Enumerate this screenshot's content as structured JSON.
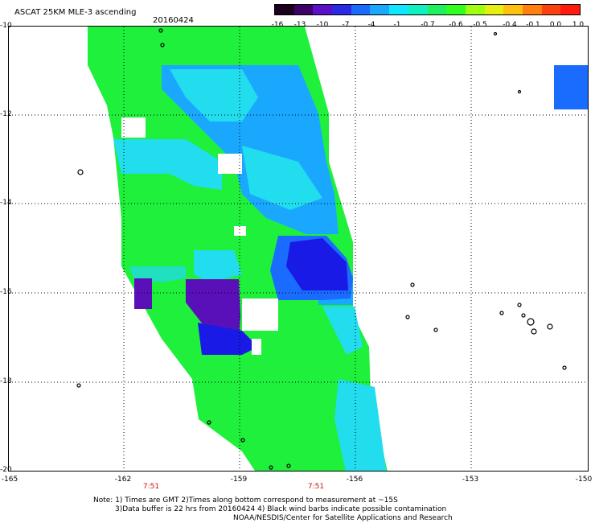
{
  "header": {
    "title": "ASCAT 25KM MLE-3 ascending",
    "date": "20160424"
  },
  "colorbar": {
    "colors": [
      "#1a001a",
      "#3d0066",
      "#5a10c8",
      "#2a2ae6",
      "#1a6cff",
      "#1aa8ff",
      "#10e6ff",
      "#10f0c0",
      "#20f060",
      "#30ff20",
      "#a0ff10",
      "#e6f010",
      "#ffc010",
      "#ff8010",
      "#ff4010",
      "#ff1a10"
    ],
    "ticks": [
      "-16",
      "-13",
      "-10",
      "-7",
      "-4",
      "-1",
      "-0.7",
      "-0.6",
      "-0.5",
      "-0.4",
      "-0.1",
      "0.0",
      "1.0"
    ]
  },
  "map": {
    "lat_labels": [
      "-10",
      "-12",
      "-14",
      "-16",
      "-18",
      "-20"
    ],
    "lon_labels": [
      "-165",
      "-162",
      "-159",
      "-156",
      "-153",
      "-150"
    ],
    "time_labels": [
      "7:51",
      "7:51"
    ]
  },
  "notes": {
    "line1": "Note: 1) Times are GMT 2)Times along bottom correspond to measurement at ~15S",
    "line2": "3)Data buffer is 22 hrs from 20160424 4) Black wind barbs indicate possible contamination",
    "line3": "NOAA/NESDIS/Center for Satellite Applications and Research"
  }
}
